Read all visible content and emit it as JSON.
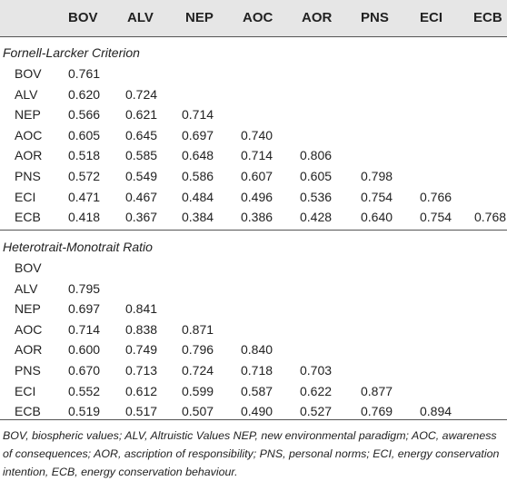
{
  "table": {
    "columns": [
      "BOV",
      "ALV",
      "NEP",
      "AOC",
      "AOR",
      "PNS",
      "ECI",
      "ECB"
    ],
    "sections": [
      {
        "title": "Fornell-Larcker Criterion",
        "rows": [
          {
            "label": "BOV",
            "values": [
              "0.761",
              "",
              "",
              "",
              "",
              "",
              "",
              ""
            ]
          },
          {
            "label": "ALV",
            "values": [
              "0.620",
              "0.724",
              "",
              "",
              "",
              "",
              "",
              ""
            ]
          },
          {
            "label": "NEP",
            "values": [
              "0.566",
              "0.621",
              "0.714",
              "",
              "",
              "",
              "",
              ""
            ]
          },
          {
            "label": "AOC",
            "values": [
              "0.605",
              "0.645",
              "0.697",
              "0.740",
              "",
              "",
              "",
              ""
            ]
          },
          {
            "label": "AOR",
            "values": [
              "0.518",
              "0.585",
              "0.648",
              "0.714",
              "0.806",
              "",
              "",
              ""
            ]
          },
          {
            "label": "PNS",
            "values": [
              "0.572",
              "0.549",
              "0.586",
              "0.607",
              "0.605",
              "0.798",
              "",
              ""
            ]
          },
          {
            "label": "ECI",
            "values": [
              "0.471",
              "0.467",
              "0.484",
              "0.496",
              "0.536",
              "0.754",
              "0.766",
              ""
            ]
          },
          {
            "label": "ECB",
            "values": [
              "0.418",
              "0.367",
              "0.384",
              "0.386",
              "0.428",
              "0.640",
              "0.754",
              "0.768"
            ]
          }
        ]
      },
      {
        "title": "Heterotrait-Monotrait Ratio",
        "rows": [
          {
            "label": "BOV",
            "values": [
              "",
              "",
              "",
              "",
              "",
              "",
              "",
              ""
            ]
          },
          {
            "label": "ALV",
            "values": [
              "0.795",
              "",
              "",
              "",
              "",
              "",
              "",
              ""
            ]
          },
          {
            "label": "NEP",
            "values": [
              "0.697",
              "0.841",
              "",
              "",
              "",
              "",
              "",
              ""
            ]
          },
          {
            "label": "AOC",
            "values": [
              "0.714",
              "0.838",
              "0.871",
              "",
              "",
              "",
              "",
              ""
            ]
          },
          {
            "label": "AOR",
            "values": [
              "0.600",
              "0.749",
              "0.796",
              "0.840",
              "",
              "",
              "",
              ""
            ]
          },
          {
            "label": "PNS",
            "values": [
              "0.670",
              "0.713",
              "0.724",
              "0.718",
              "0.703",
              "",
              "",
              ""
            ]
          },
          {
            "label": "ECI",
            "values": [
              "0.552",
              "0.612",
              "0.599",
              "0.587",
              "0.622",
              "0.877",
              "",
              ""
            ]
          },
          {
            "label": "ECB",
            "values": [
              "0.519",
              "0.517",
              "0.507",
              "0.490",
              "0.527",
              "0.769",
              "0.894",
              ""
            ]
          }
        ]
      }
    ]
  },
  "footnote": "BOV, biospheric values; ALV, Altruistic Values NEP, new environmental paradigm; AOC, awareness of consequences; AOR, ascription of responsibility; PNS, personal norms; ECI, energy conservation intention, ECB, energy conservation behaviour."
}
